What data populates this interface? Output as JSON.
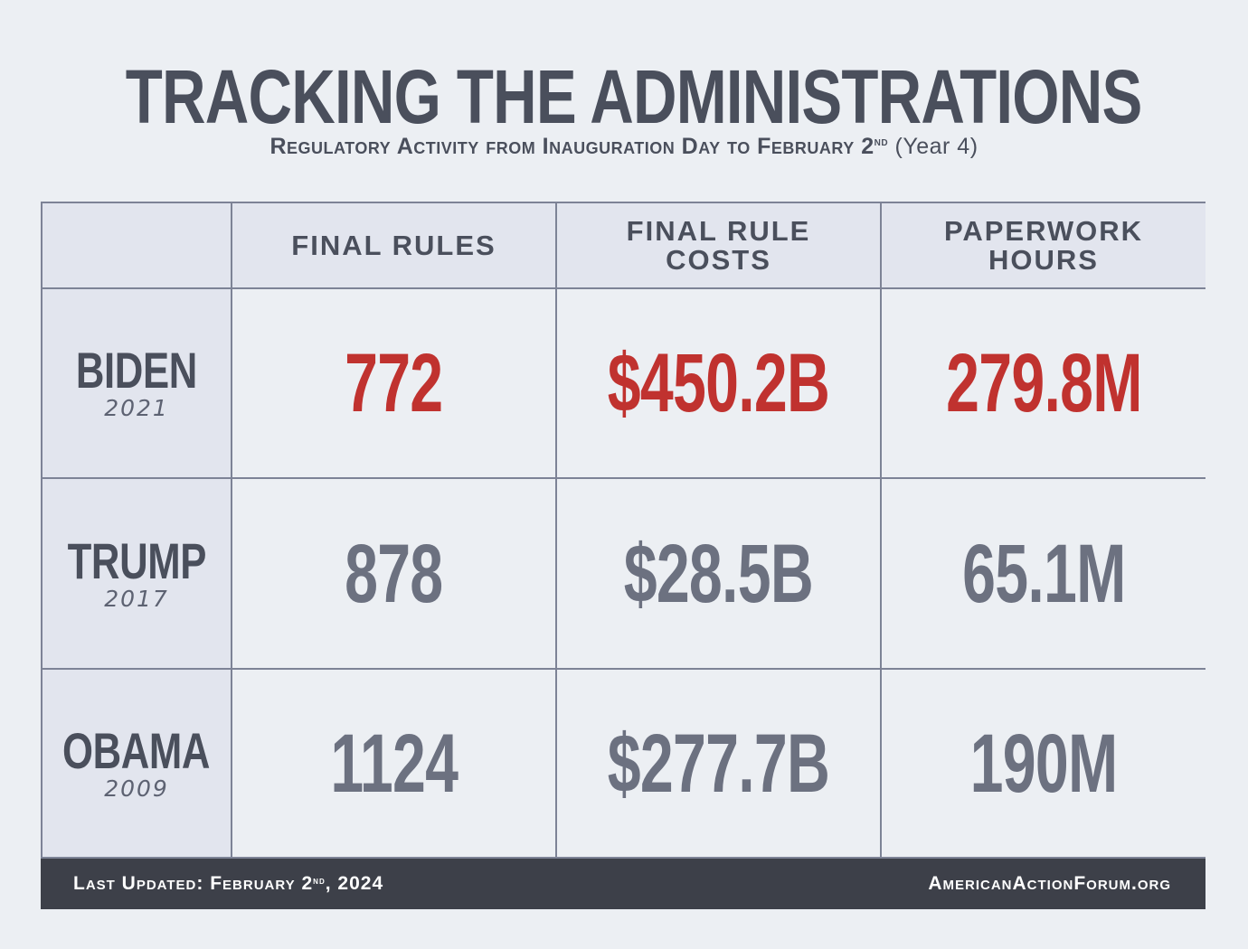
{
  "header": {
    "title": "TRACKING THE ADMINISTRATIONS",
    "subtitle_main": "Regulatory Activity from Inauguration Day to February 2",
    "subtitle_sup": "nd",
    "subtitle_tail": " (Year 4)"
  },
  "table": {
    "columns": [
      {
        "line1": "FINAL RULES",
        "line2": ""
      },
      {
        "line1": "FINAL RULE",
        "line2": "COSTS"
      },
      {
        "line1": "PAPERWORK",
        "line2": "HOURS"
      }
    ],
    "rows": [
      {
        "name": "BIDEN",
        "year": "2021",
        "values": [
          "772",
          "$450.2B",
          "279.8M"
        ],
        "highlight": true
      },
      {
        "name": "TRUMP",
        "year": "2017",
        "values": [
          "878",
          "$28.5B",
          "65.1M"
        ],
        "highlight": false
      },
      {
        "name": "OBAMA",
        "year": "2009",
        "values": [
          "1124",
          "$277.7B",
          "190M"
        ],
        "highlight": false
      }
    ]
  },
  "footer": {
    "updated_main": "Last Updated: February 2",
    "updated_sup": "nd",
    "updated_tail": ", 2024",
    "site": "AmericanActionForum.org"
  },
  "colors": {
    "highlight": "#c0322f",
    "normal": "#6c7180",
    "text": "#4a4f5c"
  }
}
